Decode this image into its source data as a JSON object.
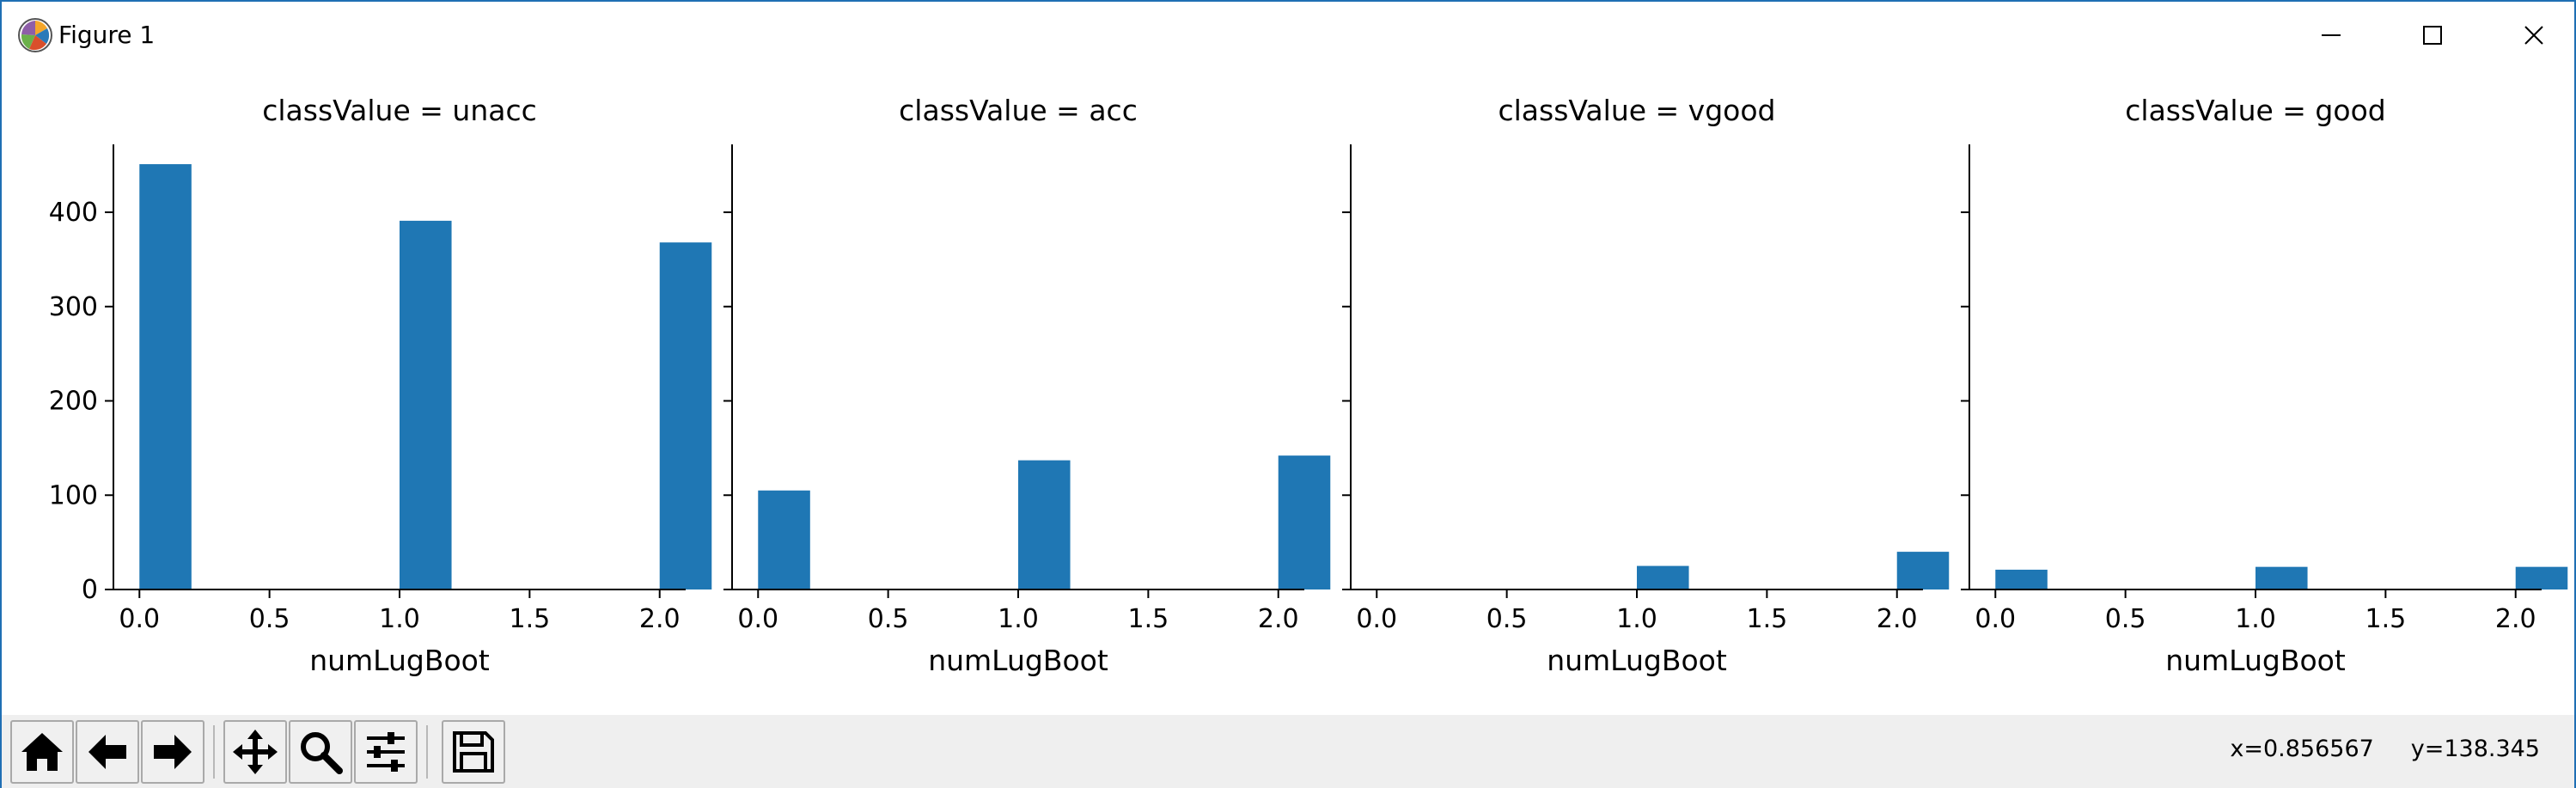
{
  "window": {
    "title": "Figure 1",
    "controls": {
      "minimize": "minimize",
      "maximize": "maximize",
      "close": "close"
    }
  },
  "toolbar": {
    "buttons": [
      "home-icon",
      "back-icon",
      "forward-icon",
      "pan-icon",
      "zoom-icon",
      "configure-subplots-icon",
      "save-icon"
    ],
    "coords": {
      "x": "x=0.856567",
      "y": "y=138.345"
    }
  },
  "colors": {
    "bar": "#1f77b4",
    "window_border": "#1f6fb4",
    "toolbar_bg": "#efefef"
  },
  "chart_data": [
    {
      "type": "bar",
      "title": "classValue = unacc",
      "xlabel": "numLugBoot",
      "ylabel": "",
      "x": [
        0.0,
        1.0,
        2.0
      ],
      "values": [
        451,
        391,
        368
      ],
      "xlim": [
        -0.1,
        2.1
      ],
      "ylim": [
        0,
        472
      ],
      "xticks": [
        "0.0",
        "0.5",
        "1.0",
        "1.5",
        "2.0"
      ],
      "yticks": [
        "0",
        "100",
        "200",
        "300",
        "400"
      ]
    },
    {
      "type": "bar",
      "title": "classValue = acc",
      "xlabel": "numLugBoot",
      "ylabel": "",
      "x": [
        0.0,
        1.0,
        2.0
      ],
      "values": [
        105,
        137,
        142
      ],
      "xlim": [
        -0.1,
        2.1
      ],
      "ylim": [
        0,
        472
      ],
      "xticks": [
        "0.0",
        "0.5",
        "1.0",
        "1.5",
        "2.0"
      ],
      "yticks": []
    },
    {
      "type": "bar",
      "title": "classValue = vgood",
      "xlabel": "numLugBoot",
      "ylabel": "",
      "x": [
        1.0,
        2.0
      ],
      "values": [
        25,
        40
      ],
      "xlim": [
        -0.1,
        2.1
      ],
      "ylim": [
        0,
        472
      ],
      "xticks": [
        "0.0",
        "0.5",
        "1.0",
        "1.5",
        "2.0"
      ],
      "yticks": []
    },
    {
      "type": "bar",
      "title": "classValue = good",
      "xlabel": "numLugBoot",
      "ylabel": "",
      "x": [
        0.0,
        1.0,
        2.0
      ],
      "values": [
        21,
        24,
        24
      ],
      "xlim": [
        -0.1,
        2.1
      ],
      "ylim": [
        0,
        472
      ],
      "xticks": [
        "0.0",
        "0.5",
        "1.0",
        "1.5",
        "2.0"
      ],
      "yticks": []
    }
  ]
}
